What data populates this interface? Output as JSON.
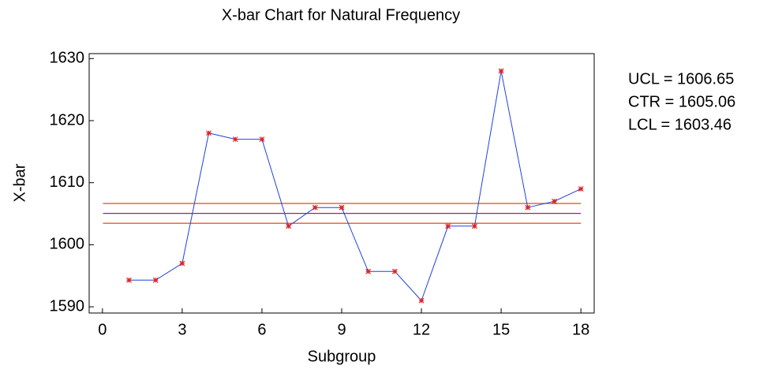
{
  "chart_data": {
    "type": "line",
    "title": "X-bar Chart for Natural Frequency",
    "x_label": "Subgroup",
    "y_label": "X-bar",
    "x": [
      1,
      2,
      3,
      4,
      5,
      6,
      7,
      8,
      9,
      10,
      11,
      12,
      13,
      14,
      15,
      16,
      17,
      18
    ],
    "series": [
      {
        "name": "X-bar",
        "color": "#2040e0",
        "marker_color": "#e02020",
        "values": [
          1594.3,
          1594.3,
          1597,
          1618,
          1617,
          1617,
          1603,
          1606,
          1606,
          1595.7,
          1595.7,
          1591,
          1603,
          1603,
          1628,
          1606,
          1607,
          1609
        ]
      }
    ],
    "control_limits": [
      {
        "label": "UCL = 1606.65",
        "value": 1606.65,
        "color": "#e85a28"
      },
      {
        "label": "CTR = 1605.06",
        "value": 1605.06,
        "color": "#8a2a7a"
      },
      {
        "label": "LCL = 1603.46",
        "value": 1603.46,
        "color": "#e85a28"
      }
    ],
    "xlim": [
      -0.5,
      18.5
    ],
    "xticks": [
      0,
      3,
      6,
      9,
      12,
      15,
      18
    ],
    "ylim": [
      1589,
      1630.8
    ],
    "yticks": [
      1590,
      1600,
      1610,
      1620,
      1630
    ],
    "grid": false
  }
}
